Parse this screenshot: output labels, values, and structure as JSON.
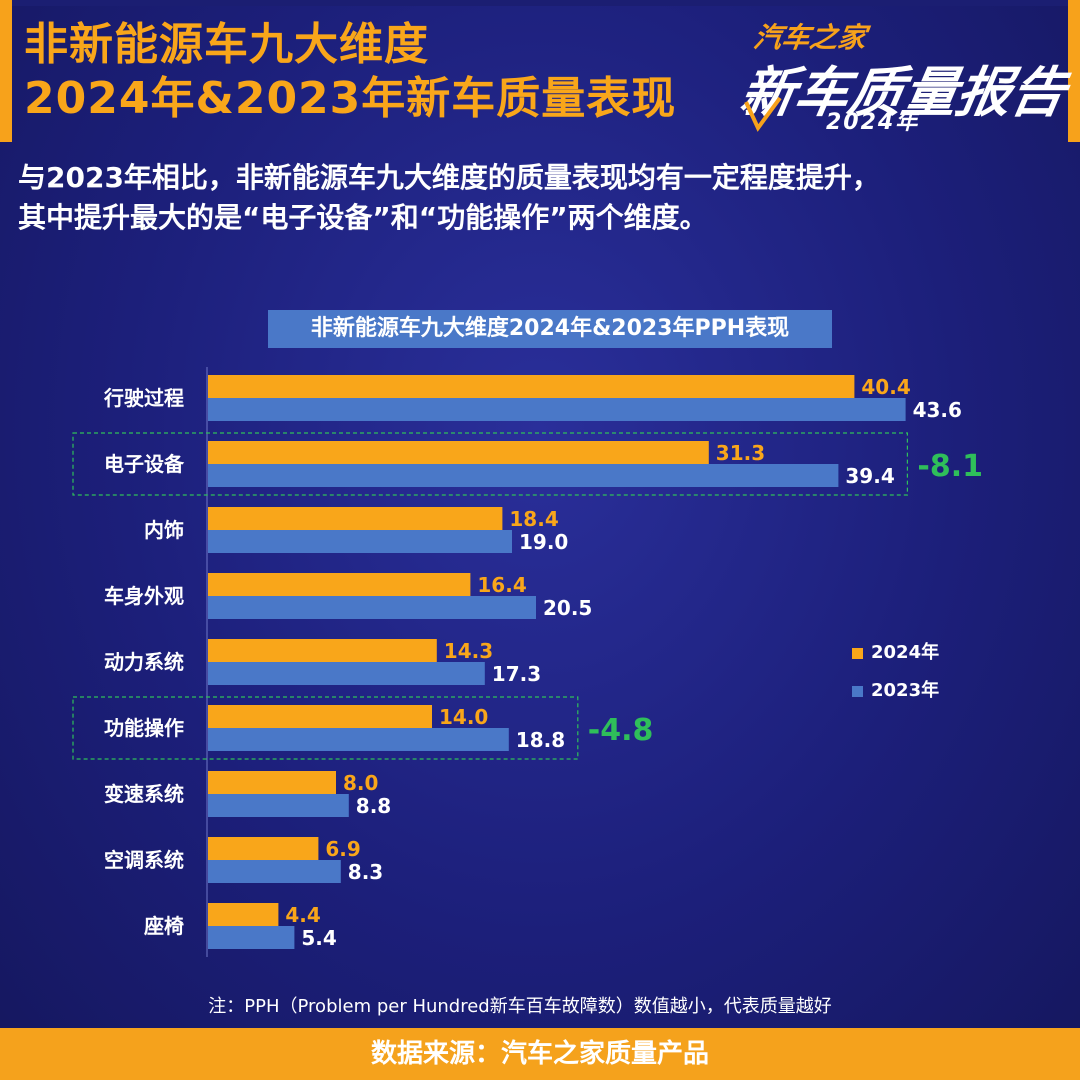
{
  "header": {
    "title_line1": "非新能源车九大维度",
    "title_line2": "2024年&2023年新车质量表现",
    "summary_line1": "与2023年相比，非新能源车九大维度的质量表现均有一定程度提升，",
    "summary_line2": "其中提升最大的是“电子设备”和“功能操作”两个维度。"
  },
  "logo": {
    "brand": "汽车之家",
    "main": "新车质量报告",
    "year": "2024年"
  },
  "colors": {
    "accent": "#f7a21b",
    "series_2024": "#f9a61a",
    "series_2023": "#4a78c8",
    "highlight_delta": "#2fbf5a",
    "background": "#1c1f7a"
  },
  "chart_data": {
    "type": "bar",
    "orientation": "horizontal",
    "title": "非新能源车九大维度2024年&2023年PPH表现",
    "categories": [
      "行驶过程",
      "电子设备",
      "内饰",
      "车身外观",
      "动力系统",
      "功能操作",
      "变速系统",
      "空调系统",
      "座椅"
    ],
    "series": [
      {
        "name": "2024年",
        "values": [
          40.4,
          31.3,
          18.4,
          16.4,
          14.3,
          14.0,
          8.0,
          6.9,
          4.4
        ]
      },
      {
        "name": "2023年",
        "values": [
          43.6,
          39.4,
          19.0,
          20.5,
          17.3,
          18.8,
          8.8,
          8.3,
          5.4
        ]
      }
    ],
    "highlights": [
      {
        "category": "电子设备",
        "delta": "-8.1"
      },
      {
        "category": "功能操作",
        "delta": "-4.8"
      }
    ],
    "xlim": [
      0,
      45
    ],
    "legend_position": "right",
    "grid": false
  },
  "footer": {
    "note": "注：PPH（Problem per Hundred新车百车故障数）数值越小，代表质量越好",
    "source": "数据来源：汽车之家质量产品"
  }
}
